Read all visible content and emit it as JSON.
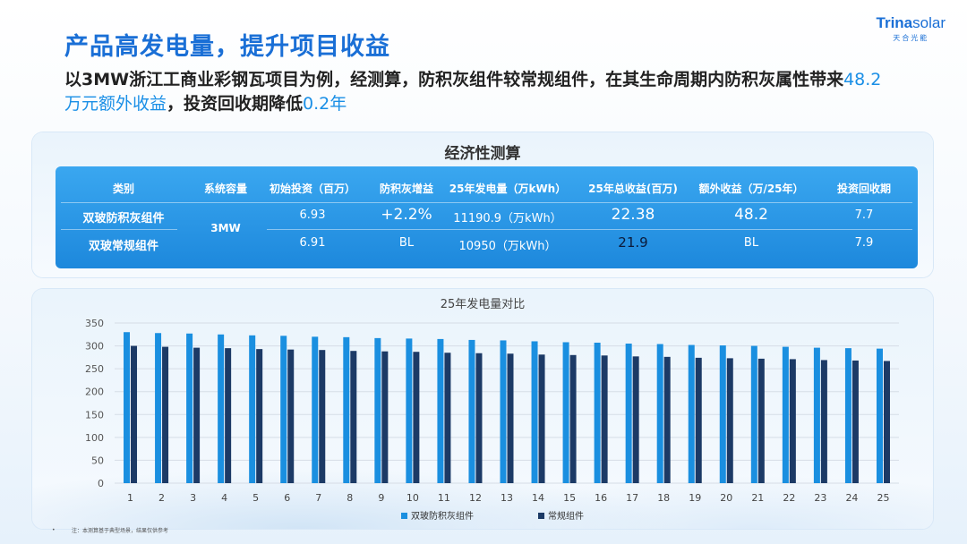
{
  "header": {
    "title": "产品高发电量，提升项目收益",
    "subtitle_part1": "以3MW浙江工商业彩钢瓦项目为例，经测算，防积灰组件较常规组件，在其生命周期内防积灰属性带来",
    "subtitle_hl1": "48.2万元额外收益",
    "subtitle_part2": "，投资回收期降低",
    "subtitle_hl2": "0.2年"
  },
  "logo": {
    "brand_bold": "Trina",
    "brand_light": "solar",
    "cn": "天合光能"
  },
  "table": {
    "title": "经济性测算",
    "headers": [
      "类别",
      "系统容量",
      "初始投资（百万）",
      "防积灰增益",
      "25年发电量（万kWh）",
      "25年总收益(百万)",
      "额外收益（万/25年）",
      "投资回收期"
    ],
    "capacity": "3MW",
    "rows": [
      [
        "双玻防积灰组件",
        "6.93",
        "+2.2%",
        "11190.9（万kWh）",
        "22.38",
        "48.2",
        "7.7"
      ],
      [
        "双玻常规组件",
        "6.91",
        "BL",
        "10950（万kWh）",
        "21.9",
        "BL",
        "7.9"
      ]
    ]
  },
  "chart_data": {
    "type": "bar",
    "title": "25年发电量对比",
    "xlabel": "",
    "ylabel": "",
    "ylim": [
      0,
      350
    ],
    "yticks": [
      0,
      50,
      100,
      150,
      200,
      250,
      300,
      350
    ],
    "categories": [
      "1",
      "2",
      "3",
      "4",
      "5",
      "6",
      "7",
      "8",
      "9",
      "10",
      "11",
      "12",
      "13",
      "14",
      "15",
      "16",
      "17",
      "18",
      "19",
      "20",
      "21",
      "22",
      "23",
      "24",
      "25"
    ],
    "series": [
      {
        "name": "双玻防积灰组件",
        "color": "#1a8fe0",
        "values": [
          330,
          328,
          327,
          325,
          323,
          322,
          320,
          319,
          317,
          316,
          315,
          313,
          312,
          310,
          308,
          307,
          305,
          304,
          302,
          301,
          300,
          298,
          296,
          295,
          294
        ]
      },
      {
        "name": "常规组件",
        "color": "#1c3a66",
        "values": [
          300,
          298,
          296,
          295,
          293,
          292,
          291,
          289,
          288,
          287,
          285,
          284,
          283,
          281,
          280,
          279,
          277,
          276,
          274,
          273,
          272,
          271,
          269,
          268,
          267
        ]
      }
    ],
    "legend": "bottom",
    "grid": true
  },
  "footnote": "注：本测算基于典型场景，结果仅供参考",
  "footnote_bullet": "•"
}
